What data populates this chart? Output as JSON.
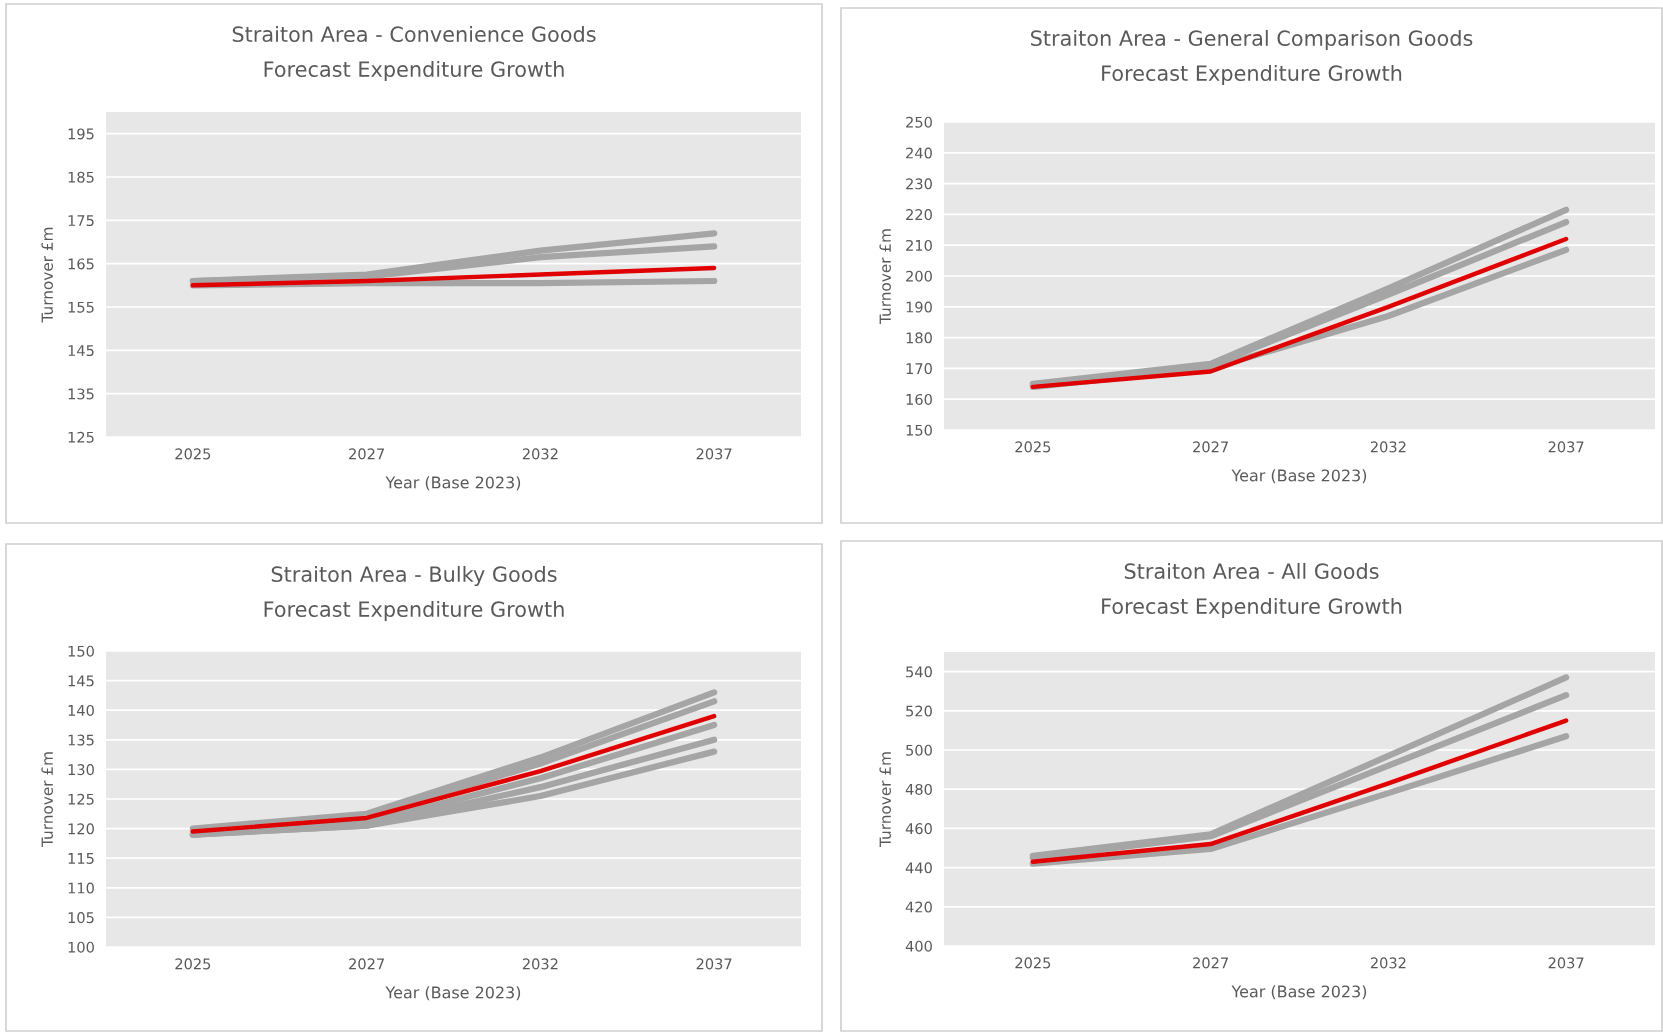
{
  "chart_data": [
    {
      "type": "line",
      "title": "Straiton Area - Convenience Goods",
      "subtitle": "Forecast Expenditure Growth",
      "xlabel": "Year (Base 2023)",
      "ylabel": "Turnover £m",
      "categories": [
        "2025",
        "2027",
        "2032",
        "2037"
      ],
      "ylim": [
        125,
        200
      ],
      "yticks": [
        125,
        135,
        145,
        155,
        165,
        175,
        185,
        195
      ],
      "grid": "y",
      "legend": false,
      "marker": "none",
      "line_style": "solid",
      "series": [
        {
          "color": "#a5a5a5",
          "values": [
            161,
            162.5,
            168,
            172
          ]
        },
        {
          "color": "#a5a5a5",
          "values": [
            161,
            162,
            166.5,
            169
          ]
        },
        {
          "color": "#a5a5a5",
          "values": [
            160,
            160.5,
            160.5,
            161
          ]
        },
        {
          "color": "#e00000",
          "values": [
            160,
            161,
            162.5,
            164
          ]
        }
      ]
    },
    {
      "type": "line",
      "title": "Straiton Area - General Comparison Goods",
      "subtitle": "Forecast Expenditure Growth",
      "xlabel": "Year (Base 2023)",
      "ylabel": "Turnover £m",
      "categories": [
        "2025",
        "2027",
        "2032",
        "2037"
      ],
      "ylim": [
        150,
        250
      ],
      "yticks": [
        150,
        160,
        170,
        180,
        190,
        200,
        210,
        220,
        230,
        240,
        250
      ],
      "grid": "y",
      "legend": false,
      "marker": "none",
      "line_style": "solid",
      "series": [
        {
          "color": "#a5a5a5",
          "values": [
            165,
            171.5,
            196,
            221.5
          ]
        },
        {
          "color": "#a5a5a5",
          "values": [
            164.5,
            171,
            194,
            217.5
          ]
        },
        {
          "color": "#a5a5a5",
          "values": [
            164,
            170,
            187,
            208.5
          ]
        },
        {
          "color": "#e00000",
          "values": [
            164,
            169,
            190,
            212
          ]
        }
      ]
    },
    {
      "type": "line",
      "title": "Straiton Area - Bulky Goods",
      "subtitle": "Forecast Expenditure Growth",
      "xlabel": "Year (Base 2023)",
      "ylabel": "Turnover £m",
      "categories": [
        "2025",
        "2027",
        "2032",
        "2037"
      ],
      "ylim": [
        100,
        150
      ],
      "yticks": [
        100,
        105,
        110,
        115,
        120,
        125,
        130,
        135,
        140,
        145,
        150
      ],
      "grid": "y",
      "legend": false,
      "marker": "none",
      "line_style": "solid",
      "series": [
        {
          "color": "#a5a5a5",
          "values": [
            120,
            122.5,
            132,
            143
          ]
        },
        {
          "color": "#a5a5a5",
          "values": [
            119.5,
            122,
            131,
            141.5
          ]
        },
        {
          "color": "#a5a5a5",
          "values": [
            119,
            121,
            128.5,
            137.5
          ]
        },
        {
          "color": "#a5a5a5",
          "values": [
            119,
            120.5,
            127,
            135
          ]
        },
        {
          "color": "#a5a5a5",
          "values": [
            119,
            120.5,
            125.5,
            133
          ]
        },
        {
          "color": "#e00000",
          "values": [
            119.5,
            121.8,
            129.7,
            139
          ]
        }
      ]
    },
    {
      "type": "line",
      "title": "Straiton Area - All Goods",
      "subtitle": "Forecast Expenditure Growth",
      "xlabel": "Year (Base 2023)",
      "ylabel": "Turnover £m",
      "categories": [
        "2025",
        "2027",
        "2032",
        "2037"
      ],
      "ylim": [
        400,
        550
      ],
      "yticks": [
        400,
        420,
        440,
        460,
        480,
        500,
        520,
        540
      ],
      "grid": "y",
      "legend": false,
      "marker": "none",
      "line_style": "solid",
      "series": [
        {
          "color": "#a5a5a5",
          "values": [
            446,
            457,
            497,
            537
          ]
        },
        {
          "color": "#a5a5a5",
          "values": [
            445,
            456,
            492,
            528
          ]
        },
        {
          "color": "#a5a5a5",
          "values": [
            442,
            449.5,
            478,
            507
          ]
        },
        {
          "color": "#e00000",
          "values": [
            443,
            452,
            483,
            515
          ]
        }
      ]
    }
  ]
}
